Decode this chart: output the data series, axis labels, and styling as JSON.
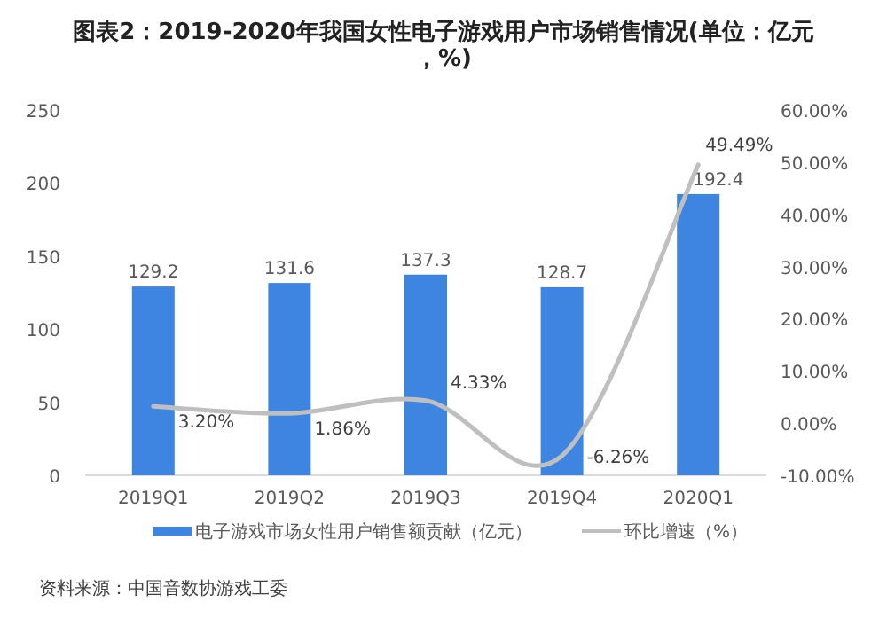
{
  "chart_data": {
    "type": "bar",
    "title": "图表2：2019-2020年我国女性电子游戏用户市场销售情况(单位：亿元，%)",
    "categories": [
      "2019Q1",
      "2019Q2",
      "2019Q3",
      "2019Q4",
      "2020Q1"
    ],
    "series": [
      {
        "name": "电子游戏市场女性用户销售额贡献（亿元）",
        "color": "#3d85e0",
        "values": [
          129.2,
          131.6,
          137.3,
          128.7,
          192.4
        ],
        "value_labels": [
          "129.2",
          "131.6",
          "137.3",
          "128.7",
          "192.4"
        ]
      },
      {
        "name": "环比增速（%）",
        "type": "line",
        "axis": "y2",
        "color": "#bfbfbf",
        "values": [
          3.2,
          1.86,
          4.33,
          -6.26,
          49.49
        ],
        "value_labels": [
          "3.20%",
          "1.86%",
          "4.33%",
          "-6.26%",
          "49.49%"
        ]
      }
    ],
    "ylim": [
      0,
      250
    ],
    "yticks": [
      0,
      50,
      100,
      150,
      200,
      250
    ],
    "y2lim": [
      -10,
      60
    ],
    "y2ticks": [
      {
        "value": -10,
        "label": "-10.00%"
      },
      {
        "value": 0,
        "label": "0.00%"
      },
      {
        "value": 10,
        "label": "10.00%"
      },
      {
        "value": 20,
        "label": "20.00%"
      },
      {
        "value": 30,
        "label": "30.00%"
      },
      {
        "value": 40,
        "label": "40.00%"
      },
      {
        "value": 50,
        "label": "50.00%"
      },
      {
        "value": 60,
        "label": "60.00%"
      }
    ],
    "legend": "bottom",
    "annotations": [
      "资料来源：中国音数协游戏工委"
    ]
  }
}
